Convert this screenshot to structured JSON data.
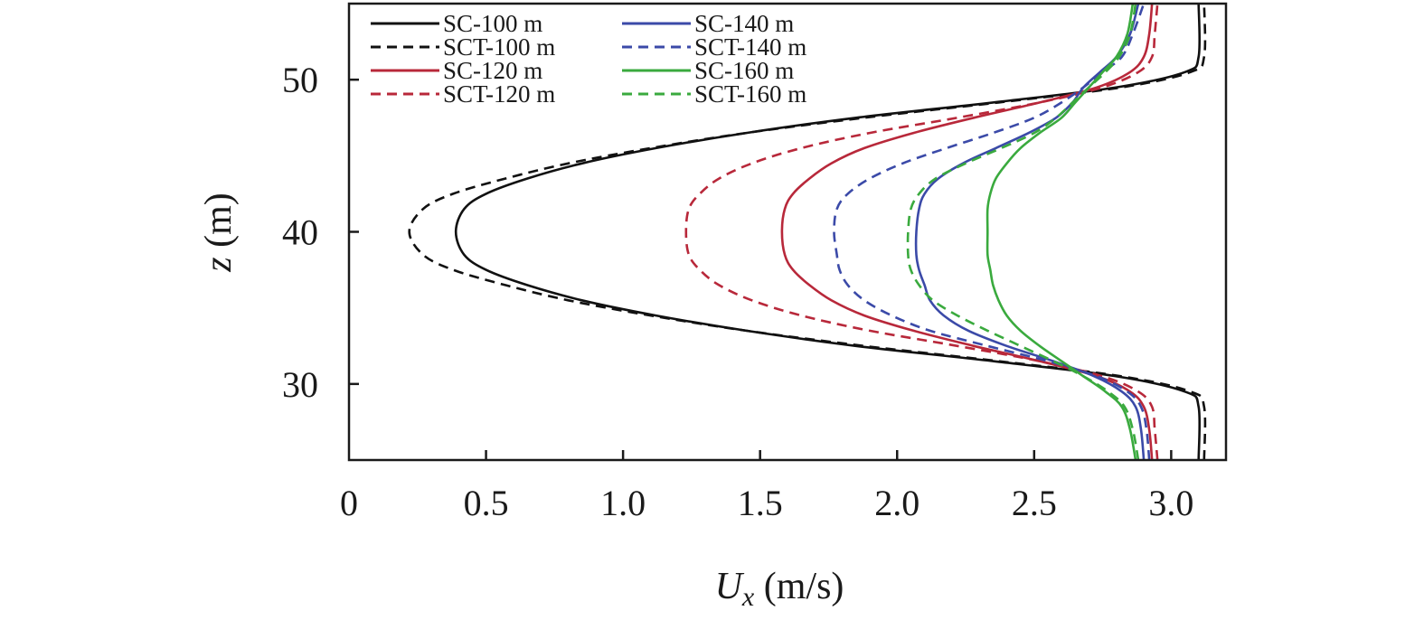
{
  "chart_data": {
    "type": "line",
    "title": "",
    "xlabel": {
      "symbol": "U",
      "subscript": "x",
      "unit": " (m/s)"
    },
    "ylabel": {
      "symbol": "z",
      "unit": " (m)"
    },
    "xlim": [
      0,
      3.2
    ],
    "ylim": [
      25,
      55
    ],
    "x_ticks": [
      {
        "value": 0,
        "label": "0"
      },
      {
        "value": 0.5,
        "label": "0.5"
      },
      {
        "value": 1.0,
        "label": "1.0"
      },
      {
        "value": 1.5,
        "label": "1.5"
      },
      {
        "value": 2.0,
        "label": "2.0"
      },
      {
        "value": 2.5,
        "label": "2.5"
      },
      {
        "value": 3.0,
        "label": "3.0"
      }
    ],
    "y_ticks": [
      {
        "value": 30,
        "label": "30"
      },
      {
        "value": 40,
        "label": "40"
      },
      {
        "value": 50,
        "label": "50"
      }
    ],
    "grid": false,
    "legend_position": "top-left",
    "series": [
      {
        "name": "SC-100 m",
        "color": "#111111",
        "dashed": false,
        "points": [
          [
            3.1,
            25
          ],
          [
            3.1,
            28.5
          ],
          [
            3.05,
            29.5
          ],
          [
            2.8,
            30.5
          ],
          [
            2.35,
            31.5
          ],
          [
            1.85,
            32.5
          ],
          [
            1.45,
            33.5
          ],
          [
            1.12,
            34.5
          ],
          [
            0.85,
            35.5
          ],
          [
            0.65,
            36.5
          ],
          [
            0.5,
            37.5
          ],
          [
            0.42,
            38.5
          ],
          [
            0.39,
            40
          ],
          [
            0.42,
            41.5
          ],
          [
            0.5,
            42.5
          ],
          [
            0.65,
            43.5
          ],
          [
            0.85,
            44.5
          ],
          [
            1.12,
            45.5
          ],
          [
            1.45,
            46.5
          ],
          [
            1.85,
            47.5
          ],
          [
            2.35,
            48.5
          ],
          [
            2.8,
            49.5
          ],
          [
            3.05,
            50.5
          ],
          [
            3.1,
            51.5
          ],
          [
            3.1,
            55
          ]
        ]
      },
      {
        "name": "SCT-100 m",
        "color": "#111111",
        "dashed": true,
        "points": [
          [
            3.12,
            25
          ],
          [
            3.12,
            28.5
          ],
          [
            3.07,
            29.5
          ],
          [
            2.82,
            30.5
          ],
          [
            2.37,
            31.5
          ],
          [
            1.88,
            32.5
          ],
          [
            1.45,
            33.5
          ],
          [
            1.1,
            34.5
          ],
          [
            0.8,
            35.5
          ],
          [
            0.57,
            36.5
          ],
          [
            0.38,
            37.5
          ],
          [
            0.27,
            38.5
          ],
          [
            0.22,
            40
          ],
          [
            0.27,
            41.5
          ],
          [
            0.38,
            42.5
          ],
          [
            0.57,
            43.5
          ],
          [
            0.8,
            44.5
          ],
          [
            1.1,
            45.5
          ],
          [
            1.45,
            46.5
          ],
          [
            1.88,
            47.5
          ],
          [
            2.37,
            48.5
          ],
          [
            2.82,
            49.5
          ],
          [
            3.07,
            50.5
          ],
          [
            3.12,
            51.5
          ],
          [
            3.12,
            55
          ]
        ]
      },
      {
        "name": "SC-120 m",
        "color": "#b8283a",
        "dashed": false,
        "points": [
          [
            2.93,
            25
          ],
          [
            2.92,
            27
          ],
          [
            2.9,
            28.5
          ],
          [
            2.85,
            29.5
          ],
          [
            2.73,
            30.5
          ],
          [
            2.52,
            31.5
          ],
          [
            2.28,
            32.5
          ],
          [
            2.06,
            33.5
          ],
          [
            1.88,
            34.5
          ],
          [
            1.76,
            35.5
          ],
          [
            1.68,
            36.5
          ],
          [
            1.62,
            37.5
          ],
          [
            1.59,
            38.5
          ],
          [
            1.58,
            40
          ],
          [
            1.59,
            41.5
          ],
          [
            1.62,
            42.5
          ],
          [
            1.68,
            43.5
          ],
          [
            1.76,
            44.5
          ],
          [
            1.88,
            45.5
          ],
          [
            2.06,
            46.5
          ],
          [
            2.28,
            47.5
          ],
          [
            2.52,
            48.5
          ],
          [
            2.73,
            49.5
          ],
          [
            2.85,
            50.5
          ],
          [
            2.9,
            51.5
          ],
          [
            2.92,
            53
          ],
          [
            2.93,
            55
          ]
        ]
      },
      {
        "name": "SCT-120 m",
        "color": "#b8283a",
        "dashed": true,
        "points": [
          [
            2.95,
            25
          ],
          [
            2.94,
            27
          ],
          [
            2.93,
            28.5
          ],
          [
            2.88,
            29.5
          ],
          [
            2.75,
            30.5
          ],
          [
            2.52,
            31.5
          ],
          [
            2.22,
            32.5
          ],
          [
            1.9,
            33.5
          ],
          [
            1.65,
            34.5
          ],
          [
            1.47,
            35.5
          ],
          [
            1.35,
            36.5
          ],
          [
            1.28,
            37.5
          ],
          [
            1.24,
            38.5
          ],
          [
            1.23,
            40
          ],
          [
            1.24,
            41.5
          ],
          [
            1.28,
            42.5
          ],
          [
            1.35,
            43.5
          ],
          [
            1.47,
            44.5
          ],
          [
            1.65,
            45.5
          ],
          [
            1.9,
            46.5
          ],
          [
            2.22,
            47.5
          ],
          [
            2.52,
            48.5
          ],
          [
            2.75,
            49.5
          ],
          [
            2.88,
            50.5
          ],
          [
            2.93,
            51.5
          ],
          [
            2.94,
            53
          ],
          [
            2.95,
            55
          ]
        ]
      },
      {
        "name": "SC-140 m",
        "color": "#3b4aa8",
        "dashed": false,
        "points": [
          [
            2.9,
            25
          ],
          [
            2.89,
            27
          ],
          [
            2.87,
            28.5
          ],
          [
            2.82,
            29.5
          ],
          [
            2.72,
            30.5
          ],
          [
            2.57,
            31.5
          ],
          [
            2.4,
            32.5
          ],
          [
            2.26,
            33.5
          ],
          [
            2.17,
            34.5
          ],
          [
            2.12,
            35.5
          ],
          [
            2.1,
            36.5
          ],
          [
            2.08,
            37.5
          ],
          [
            2.07,
            38.5
          ],
          [
            2.07,
            40
          ],
          [
            2.08,
            41.5
          ],
          [
            2.1,
            42.5
          ],
          [
            2.15,
            43.5
          ],
          [
            2.24,
            44.5
          ],
          [
            2.36,
            45.5
          ],
          [
            2.48,
            46.5
          ],
          [
            2.58,
            47.5
          ],
          [
            2.64,
            48.5
          ],
          [
            2.68,
            49.5
          ],
          [
            2.74,
            50.5
          ],
          [
            2.8,
            51.5
          ],
          [
            2.85,
            53
          ],
          [
            2.88,
            55
          ]
        ]
      },
      {
        "name": "SCT-140 m",
        "color": "#3b4aa8",
        "dashed": true,
        "points": [
          [
            2.92,
            25
          ],
          [
            2.91,
            27
          ],
          [
            2.89,
            28.5
          ],
          [
            2.84,
            29.5
          ],
          [
            2.73,
            30.5
          ],
          [
            2.55,
            31.5
          ],
          [
            2.33,
            32.5
          ],
          [
            2.12,
            33.5
          ],
          [
            1.98,
            34.5
          ],
          [
            1.88,
            35.5
          ],
          [
            1.82,
            36.5
          ],
          [
            1.79,
            37.5
          ],
          [
            1.78,
            38.5
          ],
          [
            1.77,
            40
          ],
          [
            1.78,
            41.5
          ],
          [
            1.82,
            42.5
          ],
          [
            1.9,
            43.5
          ],
          [
            2.02,
            44.5
          ],
          [
            2.18,
            45.5
          ],
          [
            2.35,
            46.5
          ],
          [
            2.5,
            47.5
          ],
          [
            2.6,
            48.5
          ],
          [
            2.68,
            49.5
          ],
          [
            2.75,
            50.5
          ],
          [
            2.82,
            51.5
          ],
          [
            2.86,
            53
          ],
          [
            2.9,
            55
          ]
        ]
      },
      {
        "name": "SC-160 m",
        "color": "#3aaa3e",
        "dashed": false,
        "points": [
          [
            2.87,
            25
          ],
          [
            2.85,
            27
          ],
          [
            2.82,
            28.5
          ],
          [
            2.76,
            29.5
          ],
          [
            2.68,
            30.5
          ],
          [
            2.6,
            31.5
          ],
          [
            2.52,
            32.5
          ],
          [
            2.45,
            33.5
          ],
          [
            2.4,
            34.5
          ],
          [
            2.37,
            35.5
          ],
          [
            2.35,
            36.5
          ],
          [
            2.34,
            37.5
          ],
          [
            2.33,
            38.5
          ],
          [
            2.33,
            40
          ],
          [
            2.33,
            41.5
          ],
          [
            2.34,
            42.5
          ],
          [
            2.36,
            43.5
          ],
          [
            2.4,
            44.5
          ],
          [
            2.45,
            45.5
          ],
          [
            2.52,
            46.5
          ],
          [
            2.6,
            47.5
          ],
          [
            2.65,
            48.5
          ],
          [
            2.7,
            49.5
          ],
          [
            2.75,
            50.5
          ],
          [
            2.8,
            51.5
          ],
          [
            2.84,
            53
          ],
          [
            2.86,
            55
          ]
        ]
      },
      {
        "name": "SCT-160 m",
        "color": "#3aaa3e",
        "dashed": true,
        "points": [
          [
            2.88,
            25
          ],
          [
            2.86,
            27
          ],
          [
            2.83,
            28.5
          ],
          [
            2.77,
            29.5
          ],
          [
            2.68,
            30.5
          ],
          [
            2.57,
            31.5
          ],
          [
            2.45,
            32.5
          ],
          [
            2.33,
            33.5
          ],
          [
            2.22,
            34.5
          ],
          [
            2.13,
            35.5
          ],
          [
            2.08,
            36.5
          ],
          [
            2.05,
            37.5
          ],
          [
            2.04,
            38.5
          ],
          [
            2.04,
            40
          ],
          [
            2.05,
            41.5
          ],
          [
            2.08,
            42.5
          ],
          [
            2.14,
            43.5
          ],
          [
            2.25,
            44.5
          ],
          [
            2.38,
            45.5
          ],
          [
            2.5,
            46.5
          ],
          [
            2.58,
            47.5
          ],
          [
            2.64,
            48.5
          ],
          [
            2.7,
            49.5
          ],
          [
            2.76,
            50.5
          ],
          [
            2.81,
            51.5
          ],
          [
            2.85,
            53
          ],
          [
            2.87,
            55
          ]
        ]
      }
    ]
  }
}
